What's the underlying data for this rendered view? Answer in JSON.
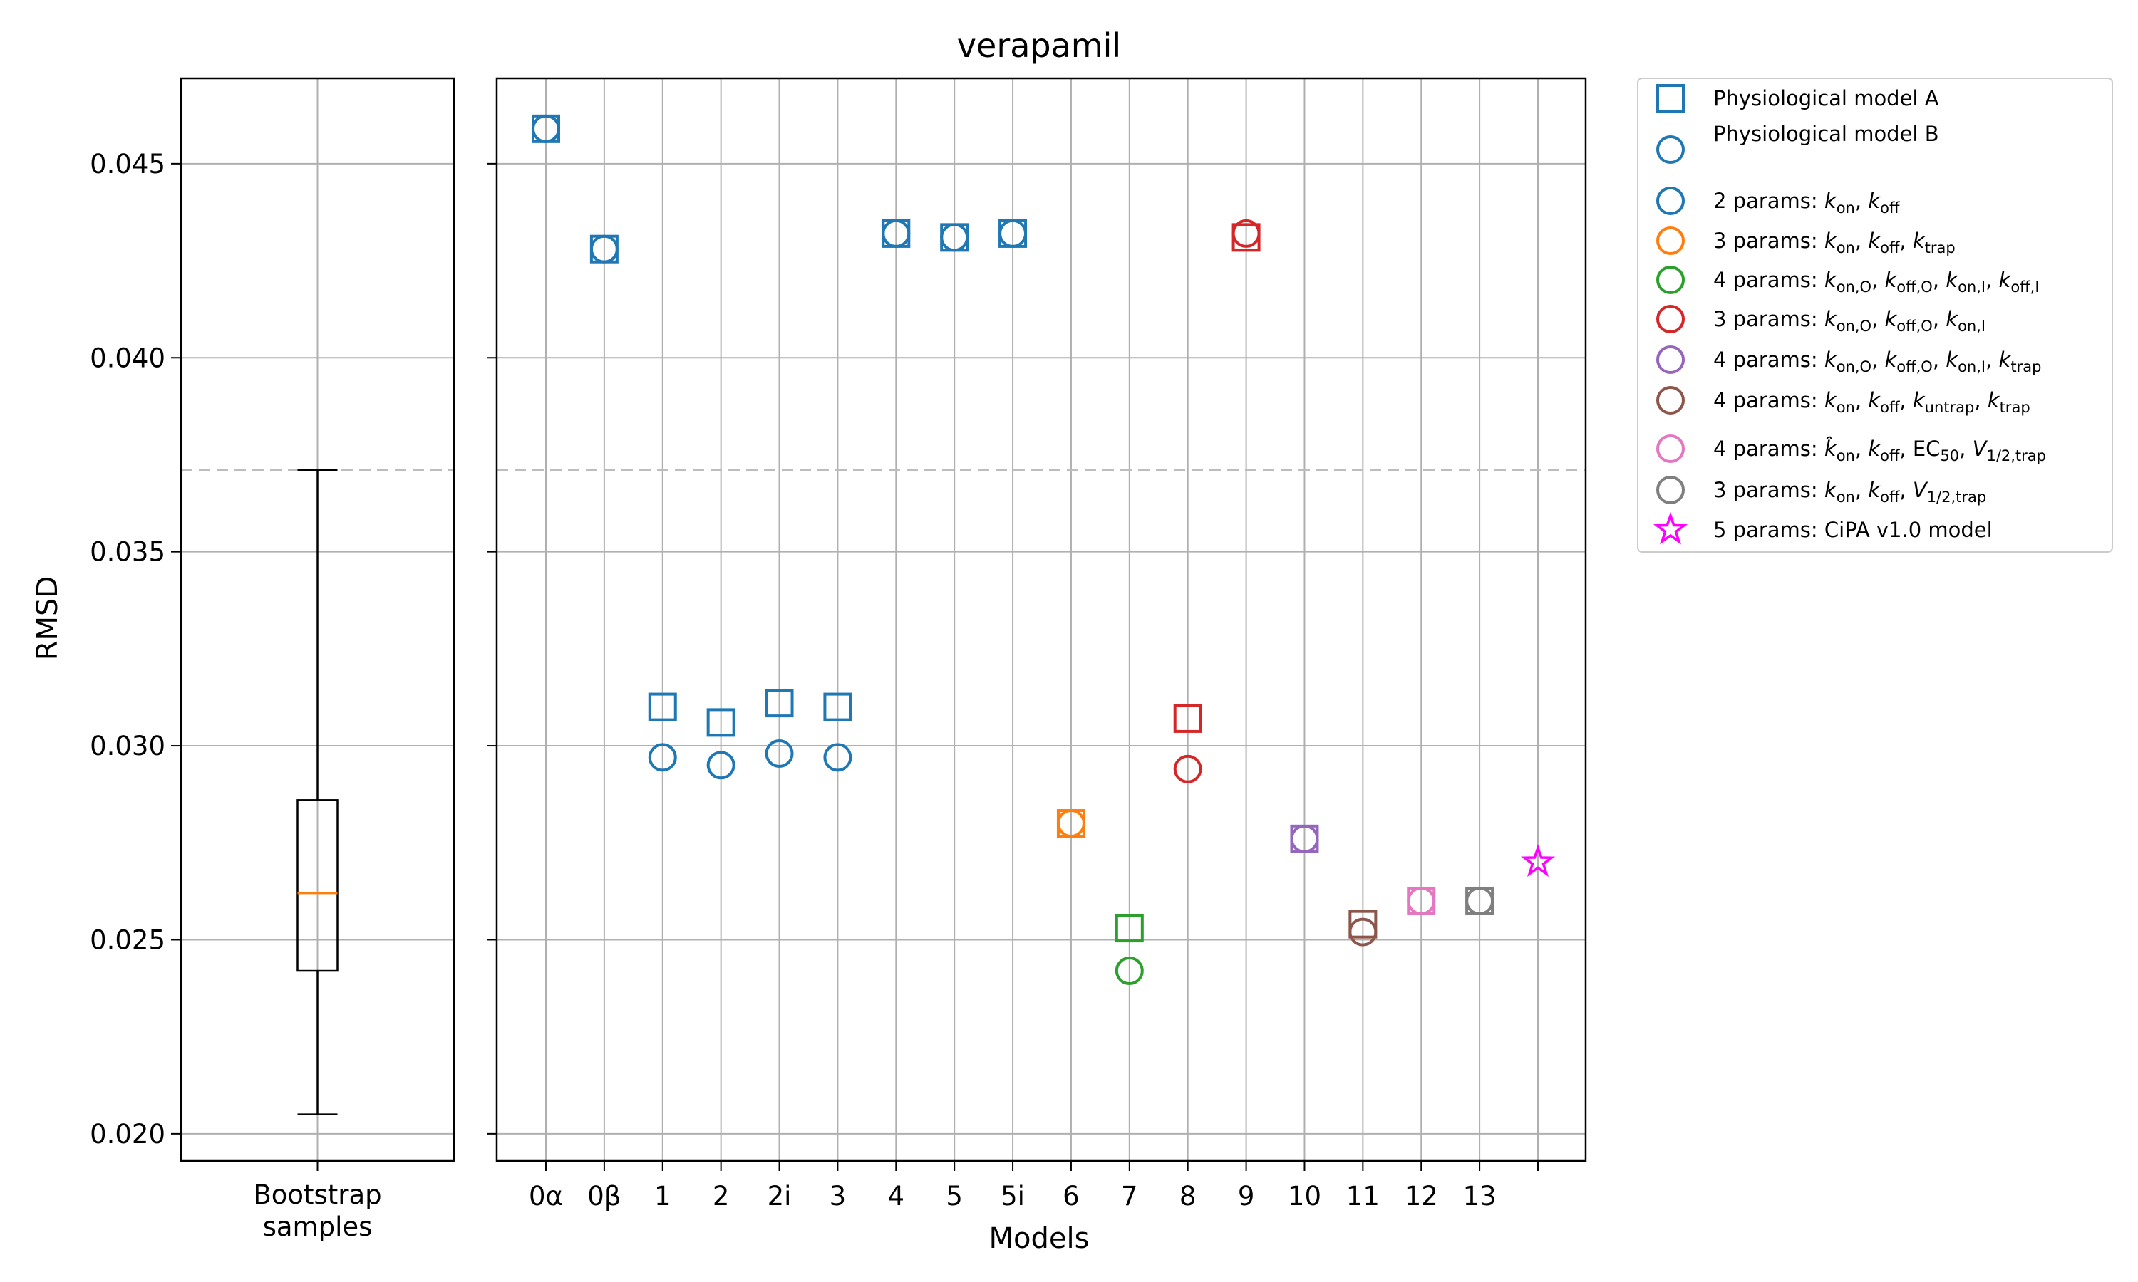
{
  "chart_data": {
    "type": "scatter",
    "title": "verapamil",
    "ylabel": "RMSD",
    "xlabel": "Models",
    "ylim": [
      0.0193,
      0.0472
    ],
    "yticks": [
      "0.020",
      "0.025",
      "0.030",
      "0.035",
      "0.040",
      "0.045"
    ],
    "ytick_values": [
      0.02,
      0.025,
      0.03,
      0.035,
      0.04,
      0.045
    ],
    "reference_line": 0.0371,
    "grid": true,
    "boxplot": {
      "category": [
        "Bootstrap",
        "samples"
      ],
      "whisker_low": 0.0205,
      "q1": 0.0242,
      "median": 0.0262,
      "q3": 0.0286,
      "whisker_high": 0.0371
    },
    "categories": [
      "0α",
      "0β",
      "1",
      "2",
      "2i",
      "3",
      "4",
      "5",
      "5i",
      "6",
      "7",
      "8",
      "9",
      "10",
      "11",
      "12",
      "13",
      ""
    ],
    "colors": {
      "blue": "#1f77b4",
      "orange": "#ff7f0e",
      "green": "#2ca02c",
      "red": "#d62728",
      "purple": "#9467bd",
      "brown": "#8c564b",
      "pink": "#e377c2",
      "gray": "#7f7f7f",
      "magenta": "#ff00ff"
    },
    "points": [
      {
        "x": "0α",
        "a": 0.0459,
        "b": 0.0459,
        "color": "blue"
      },
      {
        "x": "0β",
        "a": 0.0428,
        "b": 0.0428,
        "color": "blue"
      },
      {
        "x": "1",
        "a": 0.031,
        "b": 0.0297,
        "color": "blue"
      },
      {
        "x": "2",
        "a": 0.0306,
        "b": 0.0295,
        "color": "blue"
      },
      {
        "x": "2i",
        "a": 0.0311,
        "b": 0.0298,
        "color": "blue"
      },
      {
        "x": "3",
        "a": 0.031,
        "b": 0.0297,
        "color": "blue"
      },
      {
        "x": "4",
        "a": 0.0432,
        "b": 0.0432,
        "color": "blue"
      },
      {
        "x": "5",
        "a": 0.0431,
        "b": 0.0431,
        "color": "blue"
      },
      {
        "x": "5i",
        "a": 0.0432,
        "b": 0.0432,
        "color": "blue"
      },
      {
        "x": "6",
        "a": 0.028,
        "b": 0.028,
        "color": "orange"
      },
      {
        "x": "7",
        "a": 0.0253,
        "b": 0.0242,
        "color": "green"
      },
      {
        "x": "8",
        "a": 0.0307,
        "b": 0.0294,
        "color": "red"
      },
      {
        "x": "9",
        "a": 0.0431,
        "b": 0.0432,
        "color": "red"
      },
      {
        "x": "10",
        "a": 0.0276,
        "b": 0.0276,
        "color": "purple"
      },
      {
        "x": "11",
        "a": 0.0254,
        "b": 0.0252,
        "color": "brown"
      },
      {
        "x": "12",
        "a": 0.026,
        "b": 0.026,
        "color": "pink"
      },
      {
        "x": "13",
        "a": 0.026,
        "b": 0.026,
        "color": "gray"
      }
    ],
    "cipa": {
      "x": "",
      "y": 0.027,
      "color": "magenta"
    },
    "legend": {
      "placement": "outside-right",
      "entries": [
        {
          "marker": "square",
          "color": "blue",
          "text": "Physiological model A"
        },
        {
          "marker": "circle",
          "color": "blue",
          "text": "Physiological model B"
        },
        {
          "marker": "circle",
          "color": "blue",
          "prefix": "2 params: ",
          "terms": [
            [
              "k",
              "on"
            ],
            [
              "k",
              "off"
            ]
          ]
        },
        {
          "marker": "circle",
          "color": "orange",
          "prefix": "3 params: ",
          "terms": [
            [
              "k",
              "on"
            ],
            [
              "k",
              "off"
            ],
            [
              "k",
              "trap"
            ]
          ]
        },
        {
          "marker": "circle",
          "color": "green",
          "prefix": "4 params: ",
          "terms": [
            [
              "k",
              "on,O"
            ],
            [
              "k",
              "off,O"
            ],
            [
              "k",
              "on,I"
            ],
            [
              "k",
              "off,I"
            ]
          ]
        },
        {
          "marker": "circle",
          "color": "red",
          "prefix": "3 params: ",
          "terms": [
            [
              "k",
              "on,O"
            ],
            [
              "k",
              "off,O"
            ],
            [
              "k",
              "on,I"
            ]
          ]
        },
        {
          "marker": "circle",
          "color": "purple",
          "prefix": "4 params: ",
          "terms": [
            [
              "k",
              "on,O"
            ],
            [
              "k",
              "off,O"
            ],
            [
              "k",
              "on,I"
            ],
            [
              "k",
              "trap"
            ]
          ]
        },
        {
          "marker": "circle",
          "color": "brown",
          "prefix": "4 params: ",
          "terms": [
            [
              "k",
              "on"
            ],
            [
              "k",
              "off"
            ],
            [
              "k",
              "untrap"
            ],
            [
              "k",
              "trap"
            ]
          ]
        },
        {
          "marker": "circle",
          "color": "pink",
          "prefix": "4 params: ",
          "terms": [
            [
              "k̂",
              "on"
            ],
            [
              "k",
              "off"
            ],
            [
              "EC",
              "50"
            ],
            [
              "V",
              "1/2,trap"
            ]
          ]
        },
        {
          "marker": "circle",
          "color": "gray",
          "prefix": "3 params: ",
          "terms": [
            [
              "k",
              "on"
            ],
            [
              "k",
              "off"
            ],
            [
              "V",
              "1/2,trap"
            ]
          ]
        },
        {
          "marker": "star",
          "color": "magenta",
          "text": "5 params: CiPA v1.0 model"
        }
      ]
    }
  }
}
